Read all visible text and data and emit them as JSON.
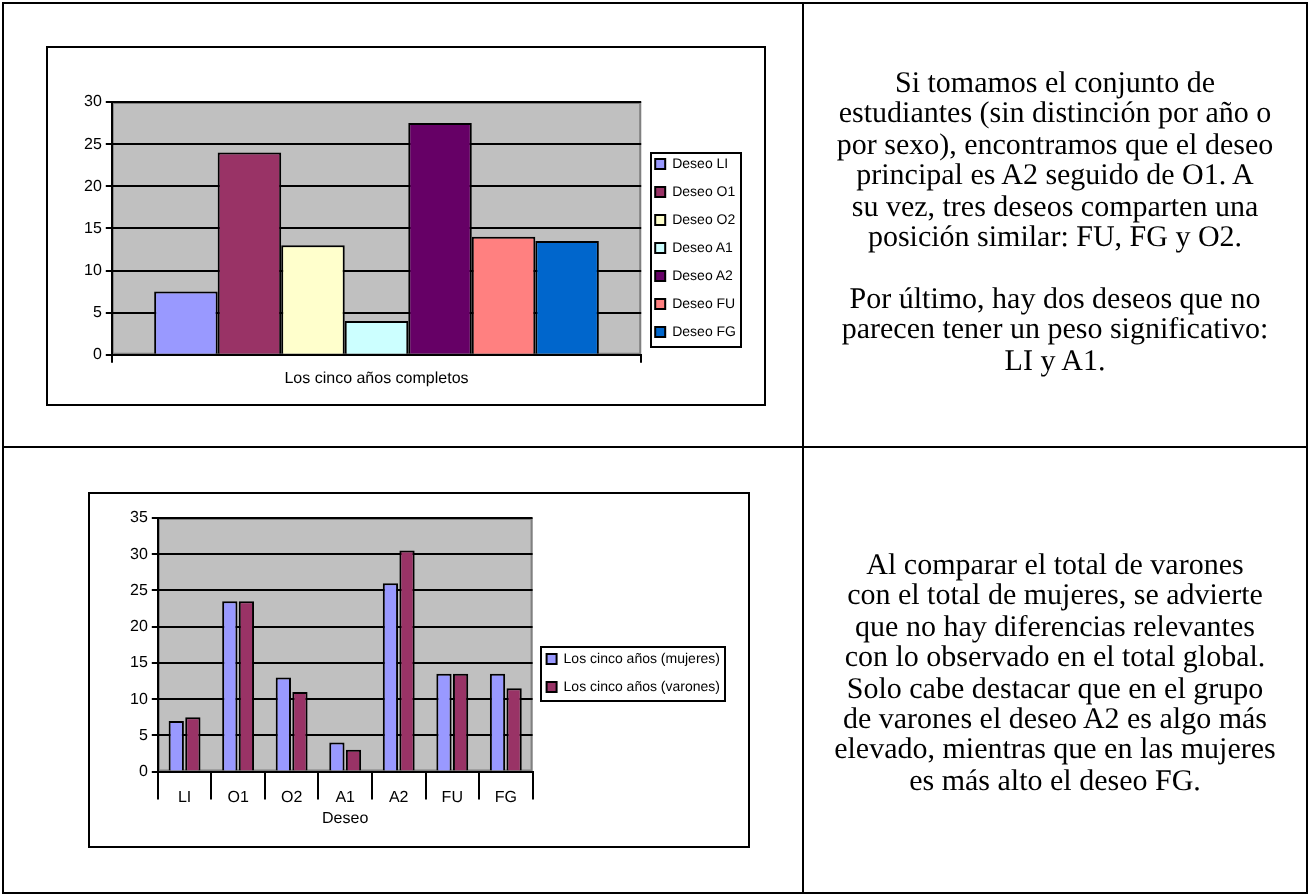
{
  "chart_data": [
    {
      "type": "bar",
      "categories": [
        "Los cinco años completos"
      ],
      "series": [
        {
          "name": "Deseo LI",
          "color": "#9999ff",
          "values": [
            7.5
          ]
        },
        {
          "name": "Deseo O1",
          "color": "#993366",
          "values": [
            24
          ]
        },
        {
          "name": "Deseo O2",
          "color": "#ffffcc",
          "values": [
            13
          ]
        },
        {
          "name": "Deseo A1",
          "color": "#ccffff",
          "values": [
            4
          ]
        },
        {
          "name": "Deseo A2",
          "color": "#660066",
          "values": [
            27.5
          ]
        },
        {
          "name": "Deseo FU",
          "color": "#ff8080",
          "values": [
            14
          ]
        },
        {
          "name": "Deseo FG",
          "color": "#0066cc",
          "values": [
            13.5
          ]
        }
      ],
      "ylim": [
        0,
        30
      ],
      "yticks": [
        0,
        5,
        10,
        15,
        20,
        25,
        30
      ],
      "grid": "y",
      "legend": "right"
    },
    {
      "type": "other",
      "annotations": [
        "Si tomamos el conjunto de\nestudiantes (sin distinción por año o\npor sexo), encontramos que el deseo\nprincipal es A2 seguido de O1. A\nsu vez, tres deseos comparten una\nposición similar: FU, FG y O2.",
        "Por último, hay dos deseos que no\nparecen tener un peso significativo:\nLI y A1."
      ]
    },
    {
      "type": "bar",
      "categories": [
        "LI",
        "O1",
        "O2",
        "A1",
        "A2",
        "FU",
        "FG"
      ],
      "xlabel": "Deseo",
      "series": [
        {
          "name": "Los cinco años (mujeres)",
          "color": "#9999ff",
          "values": [
            7,
            23.5,
            13,
            4,
            26,
            13.5,
            13.5
          ]
        },
        {
          "name": "Los cinco años (varones)",
          "color": "#993366",
          "values": [
            7.5,
            23.5,
            11,
            3,
            30.5,
            13.5,
            11.5
          ]
        }
      ],
      "ylim": [
        0,
        35
      ],
      "yticks": [
        0,
        5,
        10,
        15,
        20,
        25,
        30,
        35
      ],
      "grid": "y",
      "legend": "right"
    },
    {
      "type": "other",
      "annotations": [
        "Al comparar el total de varones\ncon el total de mujeres, se advierte\nque no hay diferencias relevantes\ncon lo observado en el total global.\nSolo cabe destacar que en el grupo\nde varones el deseo A2 es algo más\nelevado, mientras que en las mujeres\nes más alto el deseo FG."
      ]
    }
  ]
}
